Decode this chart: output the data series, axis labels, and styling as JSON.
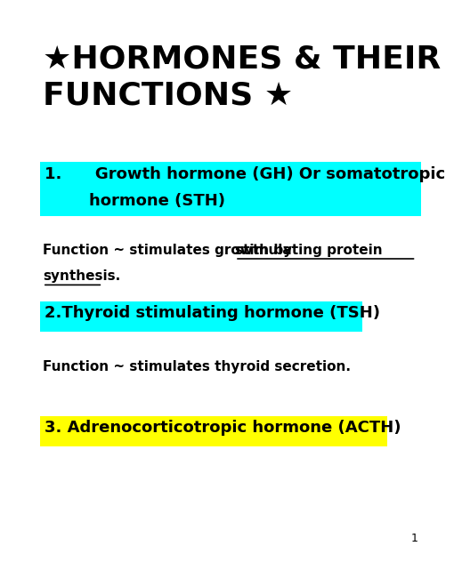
{
  "title_line1": "★HORMONES & THEIR",
  "title_line2": "FUNCTIONS ★",
  "title_fontsize": 26,
  "title_color": "#000000",
  "section1_label_line1": "1.      Growth hormone (GH) Or somatotropic",
  "section1_label_line2": "        hormone (STH)",
  "section1_bg": "#00FFFF",
  "section1_fontsize": 13,
  "func1_prefix": "Function ~ stimulates growth by ",
  "func1_underline1": "stimulating protein",
  "func1_underline2": "synthesis.",
  "func1_fontsize": 11,
  "section2_label": "2.Thyroid stimulating hormone (TSH)",
  "section2_bg": "#00FFFF",
  "section2_fontsize": 13,
  "func2_text": "Function ~ stimulates thyroid secretion.",
  "func2_fontsize": 11,
  "section3_label": "3. Adrenocorticotropic hormone (ACTH)",
  "section3_bg": "#FFFF00",
  "section3_fontsize": 13,
  "page_number": "1",
  "background_color": "#FFFFFF"
}
